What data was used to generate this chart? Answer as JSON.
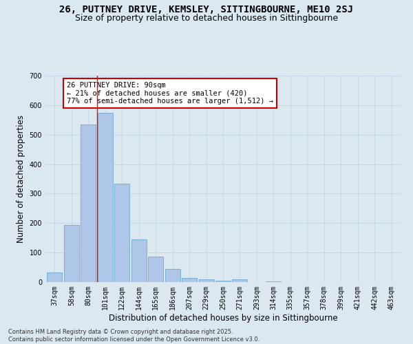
{
  "title": "26, PUTTNEY DRIVE, KEMSLEY, SITTINGBOURNE, ME10 2SJ",
  "subtitle": "Size of property relative to detached houses in Sittingbourne",
  "xlabel": "Distribution of detached houses by size in Sittingbourne",
  "ylabel": "Number of detached properties",
  "categories": [
    "37sqm",
    "58sqm",
    "80sqm",
    "101sqm",
    "122sqm",
    "144sqm",
    "165sqm",
    "186sqm",
    "207sqm",
    "229sqm",
    "250sqm",
    "271sqm",
    "293sqm",
    "314sqm",
    "335sqm",
    "357sqm",
    "378sqm",
    "399sqm",
    "421sqm",
    "442sqm",
    "463sqm"
  ],
  "values": [
    33,
    193,
    535,
    573,
    333,
    145,
    87,
    45,
    13,
    10,
    5,
    10,
    0,
    3,
    0,
    0,
    0,
    0,
    0,
    0,
    0
  ],
  "bar_color": "#aec6e8",
  "bar_edge_color": "#6aaad4",
  "grid_color": "#c8d8e8",
  "background_color": "#dce8f0",
  "red_line_x": 2.5,
  "annotation_text": "26 PUTTNEY DRIVE: 90sqm\n← 21% of detached houses are smaller (420)\n77% of semi-detached houses are larger (1,512) →",
  "annotation_box_color": "#ffffff",
  "annotation_edge_color": "#cc0000",
  "ylim": [
    0,
    700
  ],
  "yticks": [
    0,
    100,
    200,
    300,
    400,
    500,
    600,
    700
  ],
  "footer": "Contains HM Land Registry data © Crown copyright and database right 2025.\nContains public sector information licensed under the Open Government Licence v3.0.",
  "title_fontsize": 10,
  "subtitle_fontsize": 9,
  "axis_label_fontsize": 8.5,
  "tick_fontsize": 7,
  "annotation_fontsize": 7.5,
  "footer_fontsize": 6
}
